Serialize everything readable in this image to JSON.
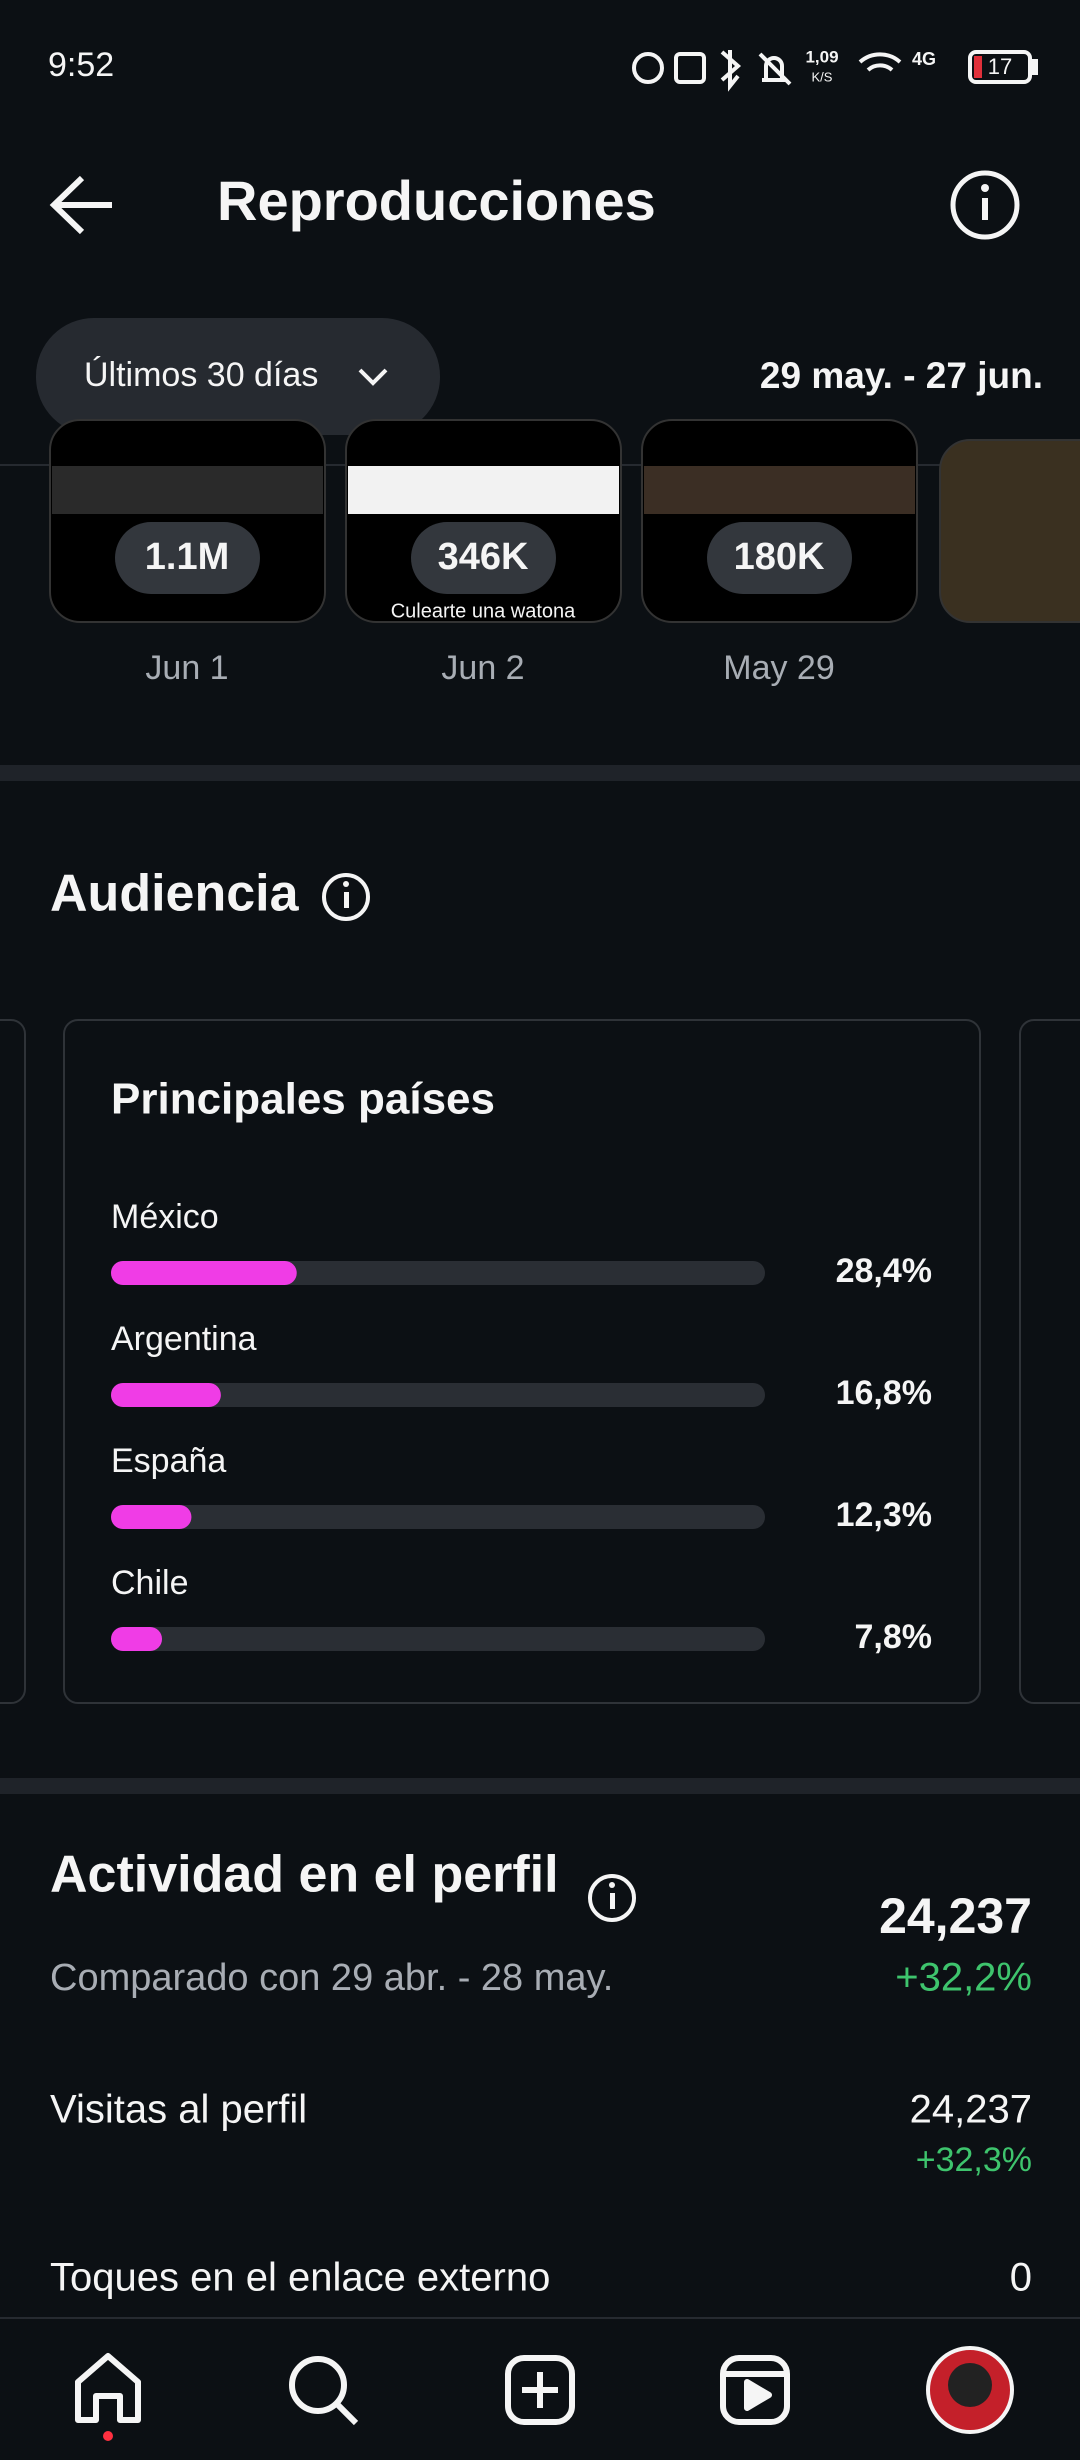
{
  "status_bar": {
    "time": "9:52",
    "speed": "1,09",
    "speed_unit": "K/S",
    "network": "4G",
    "battery": "17"
  },
  "header": {
    "title": "Reproducciones"
  },
  "filter": {
    "period": "Últimos 30 días",
    "range": "29 may. - 27 jun."
  },
  "thumbnails": [
    {
      "count": "1.1M",
      "date": "Jun 1"
    },
    {
      "count": "346K",
      "date": "Jun 2",
      "caption": "Culearte una watona"
    },
    {
      "count": "180K",
      "date": "May 29"
    }
  ],
  "audience": {
    "title": "Audiencia",
    "card_title": "Principales países",
    "xlim": [
      0,
      100
    ],
    "countries": [
      {
        "name": "México",
        "value": 28.4,
        "label": "28,4%"
      },
      {
        "name": "Argentina",
        "value": 16.8,
        "label": "16,8%"
      },
      {
        "name": "España",
        "value": 12.3,
        "label": "12,3%"
      },
      {
        "name": "Chile",
        "value": 7.8,
        "label": "7,8%"
      }
    ]
  },
  "activity": {
    "title": "Actividad en el perfil",
    "comparison": "Comparado con 29 abr. - 28 may.",
    "total": "24,237",
    "total_change": "+32,2%",
    "rows": [
      {
        "label": "Visitas al perfil",
        "value": "24,237",
        "change": "+32,3%"
      },
      {
        "label": "Toques en el enlace externo",
        "value": "0"
      }
    ]
  }
}
